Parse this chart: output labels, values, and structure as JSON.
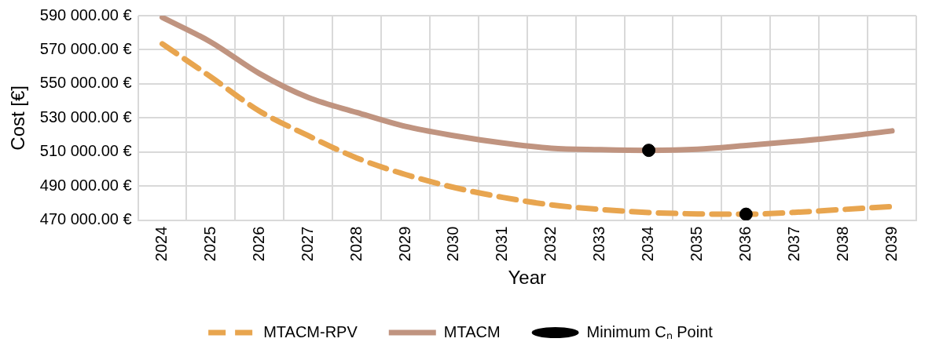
{
  "chart_data": {
    "type": "line",
    "xlabel": "Year",
    "ylabel": "Cost [€]",
    "categories": [
      "2024",
      "2025",
      "2026",
      "2027",
      "2028",
      "2029",
      "2030",
      "2031",
      "2032",
      "2033",
      "2034",
      "2035",
      "2036",
      "2037",
      "2038",
      "2039"
    ],
    "series": [
      {
        "name": "MTACM-RPV",
        "color": "#e8a54f",
        "line_style": "dashed",
        "values": [
          573500,
          554000,
          534000,
          519600,
          506500,
          496800,
          489200,
          483400,
          479000,
          476300,
          474500,
          473700,
          473500,
          474600,
          476300,
          478000
        ]
      },
      {
        "name": "MTACM",
        "color": "#c09480",
        "line_style": "solid",
        "values": [
          589000,
          574500,
          556000,
          542000,
          533200,
          525000,
          519600,
          515300,
          512200,
          511400,
          511000,
          511600,
          513800,
          516200,
          519000,
          522400
        ]
      },
      {
        "name": "Minimum Cₙ Point",
        "type": "scatter",
        "color": "#000000",
        "marker": "circle",
        "values": [
          null,
          null,
          null,
          null,
          null,
          null,
          null,
          null,
          null,
          null,
          511000,
          null,
          473500,
          null,
          null,
          null
        ]
      }
    ],
    "ylim": [
      470000,
      590000
    ],
    "yticks": [
      {
        "value": 470000,
        "label": "470 000.00 €"
      },
      {
        "value": 490000,
        "label": "490 000.00 €"
      },
      {
        "value": 510000,
        "label": "510 000.00 €"
      },
      {
        "value": 530000,
        "label": "530 000.00 €"
      },
      {
        "value": 550000,
        "label": "550 000.00 €"
      },
      {
        "value": 570000,
        "label": "570 000.00 €"
      },
      {
        "value": 590000,
        "label": "590 000.00 €"
      }
    ],
    "grid": true,
    "legend": "bottom",
    "marker": "none"
  }
}
